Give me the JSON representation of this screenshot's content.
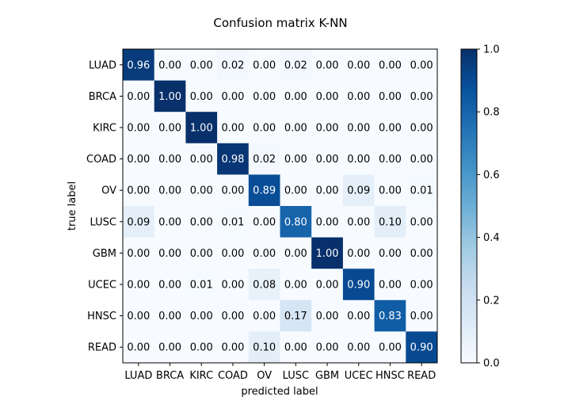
{
  "chart_data": {
    "type": "heatmap",
    "title": "Confusion matrix K-NN",
    "xlabel": "predicted label",
    "ylabel": "true label",
    "row_labels": [
      "LUAD",
      "BRCA",
      "KIRC",
      "COAD",
      "OV",
      "LUSC",
      "GBM",
      "UCEC",
      "HNSC",
      "READ"
    ],
    "col_labels": [
      "LUAD",
      "BRCA",
      "KIRC",
      "COAD",
      "OV",
      "LUSC",
      "GBM",
      "UCEC",
      "HNSC",
      "READ"
    ],
    "values": [
      [
        0.96,
        0.0,
        0.0,
        0.02,
        0.0,
        0.02,
        0.0,
        0.0,
        0.0,
        0.0
      ],
      [
        0.0,
        1.0,
        0.0,
        0.0,
        0.0,
        0.0,
        0.0,
        0.0,
        0.0,
        0.0
      ],
      [
        0.0,
        0.0,
        1.0,
        0.0,
        0.0,
        0.0,
        0.0,
        0.0,
        0.0,
        0.0
      ],
      [
        0.0,
        0.0,
        0.0,
        0.98,
        0.02,
        0.0,
        0.0,
        0.0,
        0.0,
        0.0
      ],
      [
        0.0,
        0.0,
        0.0,
        0.0,
        0.89,
        0.0,
        0.0,
        0.09,
        0.0,
        0.01
      ],
      [
        0.09,
        0.0,
        0.0,
        0.01,
        0.0,
        0.8,
        0.0,
        0.0,
        0.1,
        0.0
      ],
      [
        0.0,
        0.0,
        0.0,
        0.0,
        0.0,
        0.0,
        1.0,
        0.0,
        0.0,
        0.0
      ],
      [
        0.0,
        0.0,
        0.01,
        0.0,
        0.08,
        0.0,
        0.0,
        0.9,
        0.0,
        0.0
      ],
      [
        0.0,
        0.0,
        0.0,
        0.0,
        0.0,
        0.17,
        0.0,
        0.0,
        0.83,
        0.0
      ],
      [
        0.0,
        0.0,
        0.0,
        0.0,
        0.1,
        0.0,
        0.0,
        0.0,
        0.0,
        0.9
      ]
    ],
    "colorbar_range": [
      0.0,
      1.0
    ],
    "colorbar_ticks": [
      "0.0",
      "0.2",
      "0.4",
      "0.6",
      "0.8",
      "1.0"
    ],
    "colormap": "Blues",
    "colormap_low": "#f7fbff",
    "colormap_high": "#08306b",
    "text_dark_color": "#000000",
    "text_light_color": "#ffffff"
  }
}
